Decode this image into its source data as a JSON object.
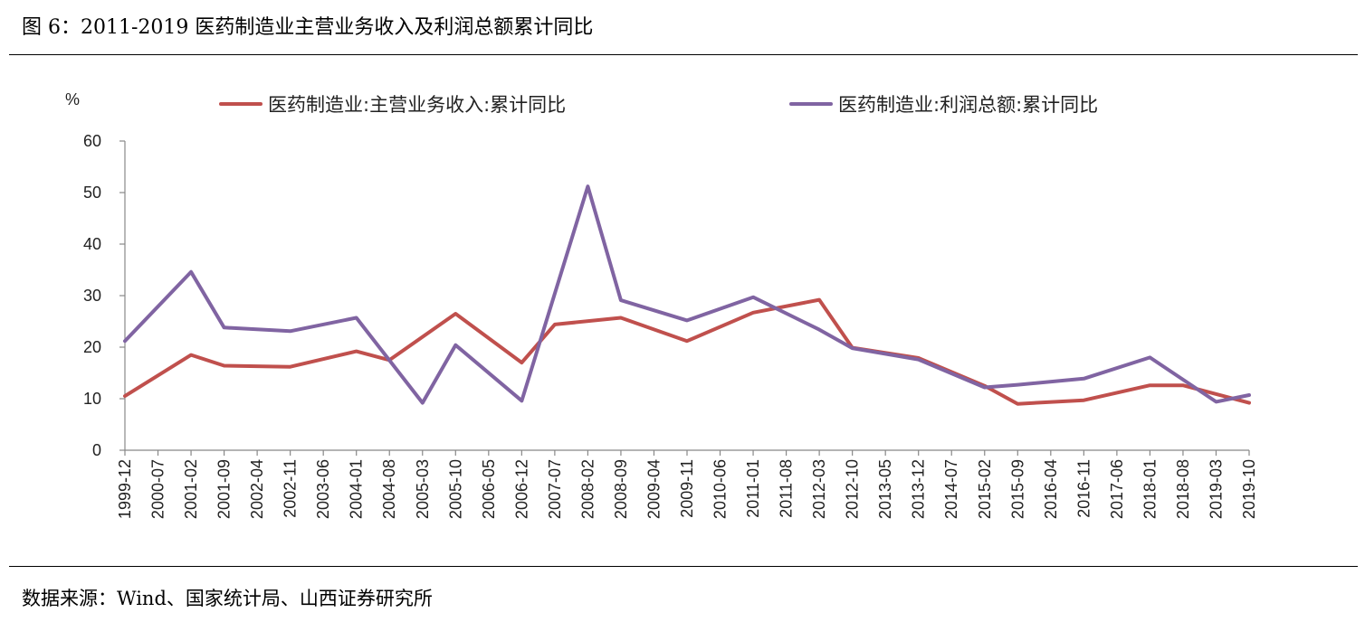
{
  "header": {
    "title": "图 6：2011-2019 医药制造业主营业务收入及利润总额累计同比"
  },
  "footer": {
    "source": "数据来源：Wind、国家统计局、山西证券研究所"
  },
  "chart_data": {
    "type": "line",
    "y_unit": "%",
    "ylim": [
      0,
      60
    ],
    "y_ticks": [
      0,
      10,
      20,
      30,
      40,
      50,
      60
    ],
    "grid": false,
    "legend_position": "top",
    "x": [
      "1999-12",
      "2000-07",
      "2001-02",
      "2001-09",
      "2002-04",
      "2002-11",
      "2003-06",
      "2004-01",
      "2004-08",
      "2005-03",
      "2005-10",
      "2006-05",
      "2006-12",
      "2007-07",
      "2008-02",
      "2008-09",
      "2009-04",
      "2009-11",
      "2010-06",
      "2011-01",
      "2011-08",
      "2012-03",
      "2012-10",
      "2013-05",
      "2013-12",
      "2014-07",
      "2015-02",
      "2015-09",
      "2016-04",
      "2016-11",
      "2017-06",
      "2018-01",
      "2018-08",
      "2019-03",
      "2019-10"
    ],
    "series": [
      {
        "name": "医药制造业:主营业务收入:累计同比",
        "color": "#c0504d",
        "points": [
          [
            "1999-12",
            10.5
          ],
          [
            "2001-02",
            18.5
          ],
          [
            "2001-09",
            16.4
          ],
          [
            "2002-11",
            16.2
          ],
          [
            "2004-01",
            19.2
          ],
          [
            "2004-08",
            17.5
          ],
          [
            "2005-10",
            26.5
          ],
          [
            "2006-12",
            17.0
          ],
          [
            "2007-07",
            24.4
          ],
          [
            "2008-09",
            25.7
          ],
          [
            "2009-11",
            21.2
          ],
          [
            "2011-01",
            26.7
          ],
          [
            "2012-03",
            29.2
          ],
          [
            "2012-10",
            19.9
          ],
          [
            "2013-12",
            17.9
          ],
          [
            "2015-02",
            12.5
          ],
          [
            "2015-09",
            9.0
          ],
          [
            "2016-11",
            9.7
          ],
          [
            "2018-01",
            12.6
          ],
          [
            "2018-08",
            12.6
          ],
          [
            "2019-10",
            9.2
          ]
        ]
      },
      {
        "name": "医药制造业:利润总额:累计同比",
        "color": "#8064a2",
        "points": [
          [
            "1999-12",
            21.2
          ],
          [
            "2001-02",
            34.6
          ],
          [
            "2001-09",
            23.8
          ],
          [
            "2002-11",
            23.1
          ],
          [
            "2004-01",
            25.7
          ],
          [
            "2005-03",
            9.2
          ],
          [
            "2005-10",
            20.4
          ],
          [
            "2006-12",
            9.6
          ],
          [
            "2008-02",
            51.2
          ],
          [
            "2008-09",
            29.1
          ],
          [
            "2009-11",
            25.2
          ],
          [
            "2011-01",
            29.7
          ],
          [
            "2012-03",
            23.4
          ],
          [
            "2012-10",
            19.8
          ],
          [
            "2013-12",
            17.6
          ],
          [
            "2015-02",
            12.2
          ],
          [
            "2015-09",
            12.7
          ],
          [
            "2016-11",
            13.9
          ],
          [
            "2018-01",
            18.0
          ],
          [
            "2019-03",
            9.4
          ],
          [
            "2019-10",
            10.7
          ]
        ]
      }
    ]
  }
}
